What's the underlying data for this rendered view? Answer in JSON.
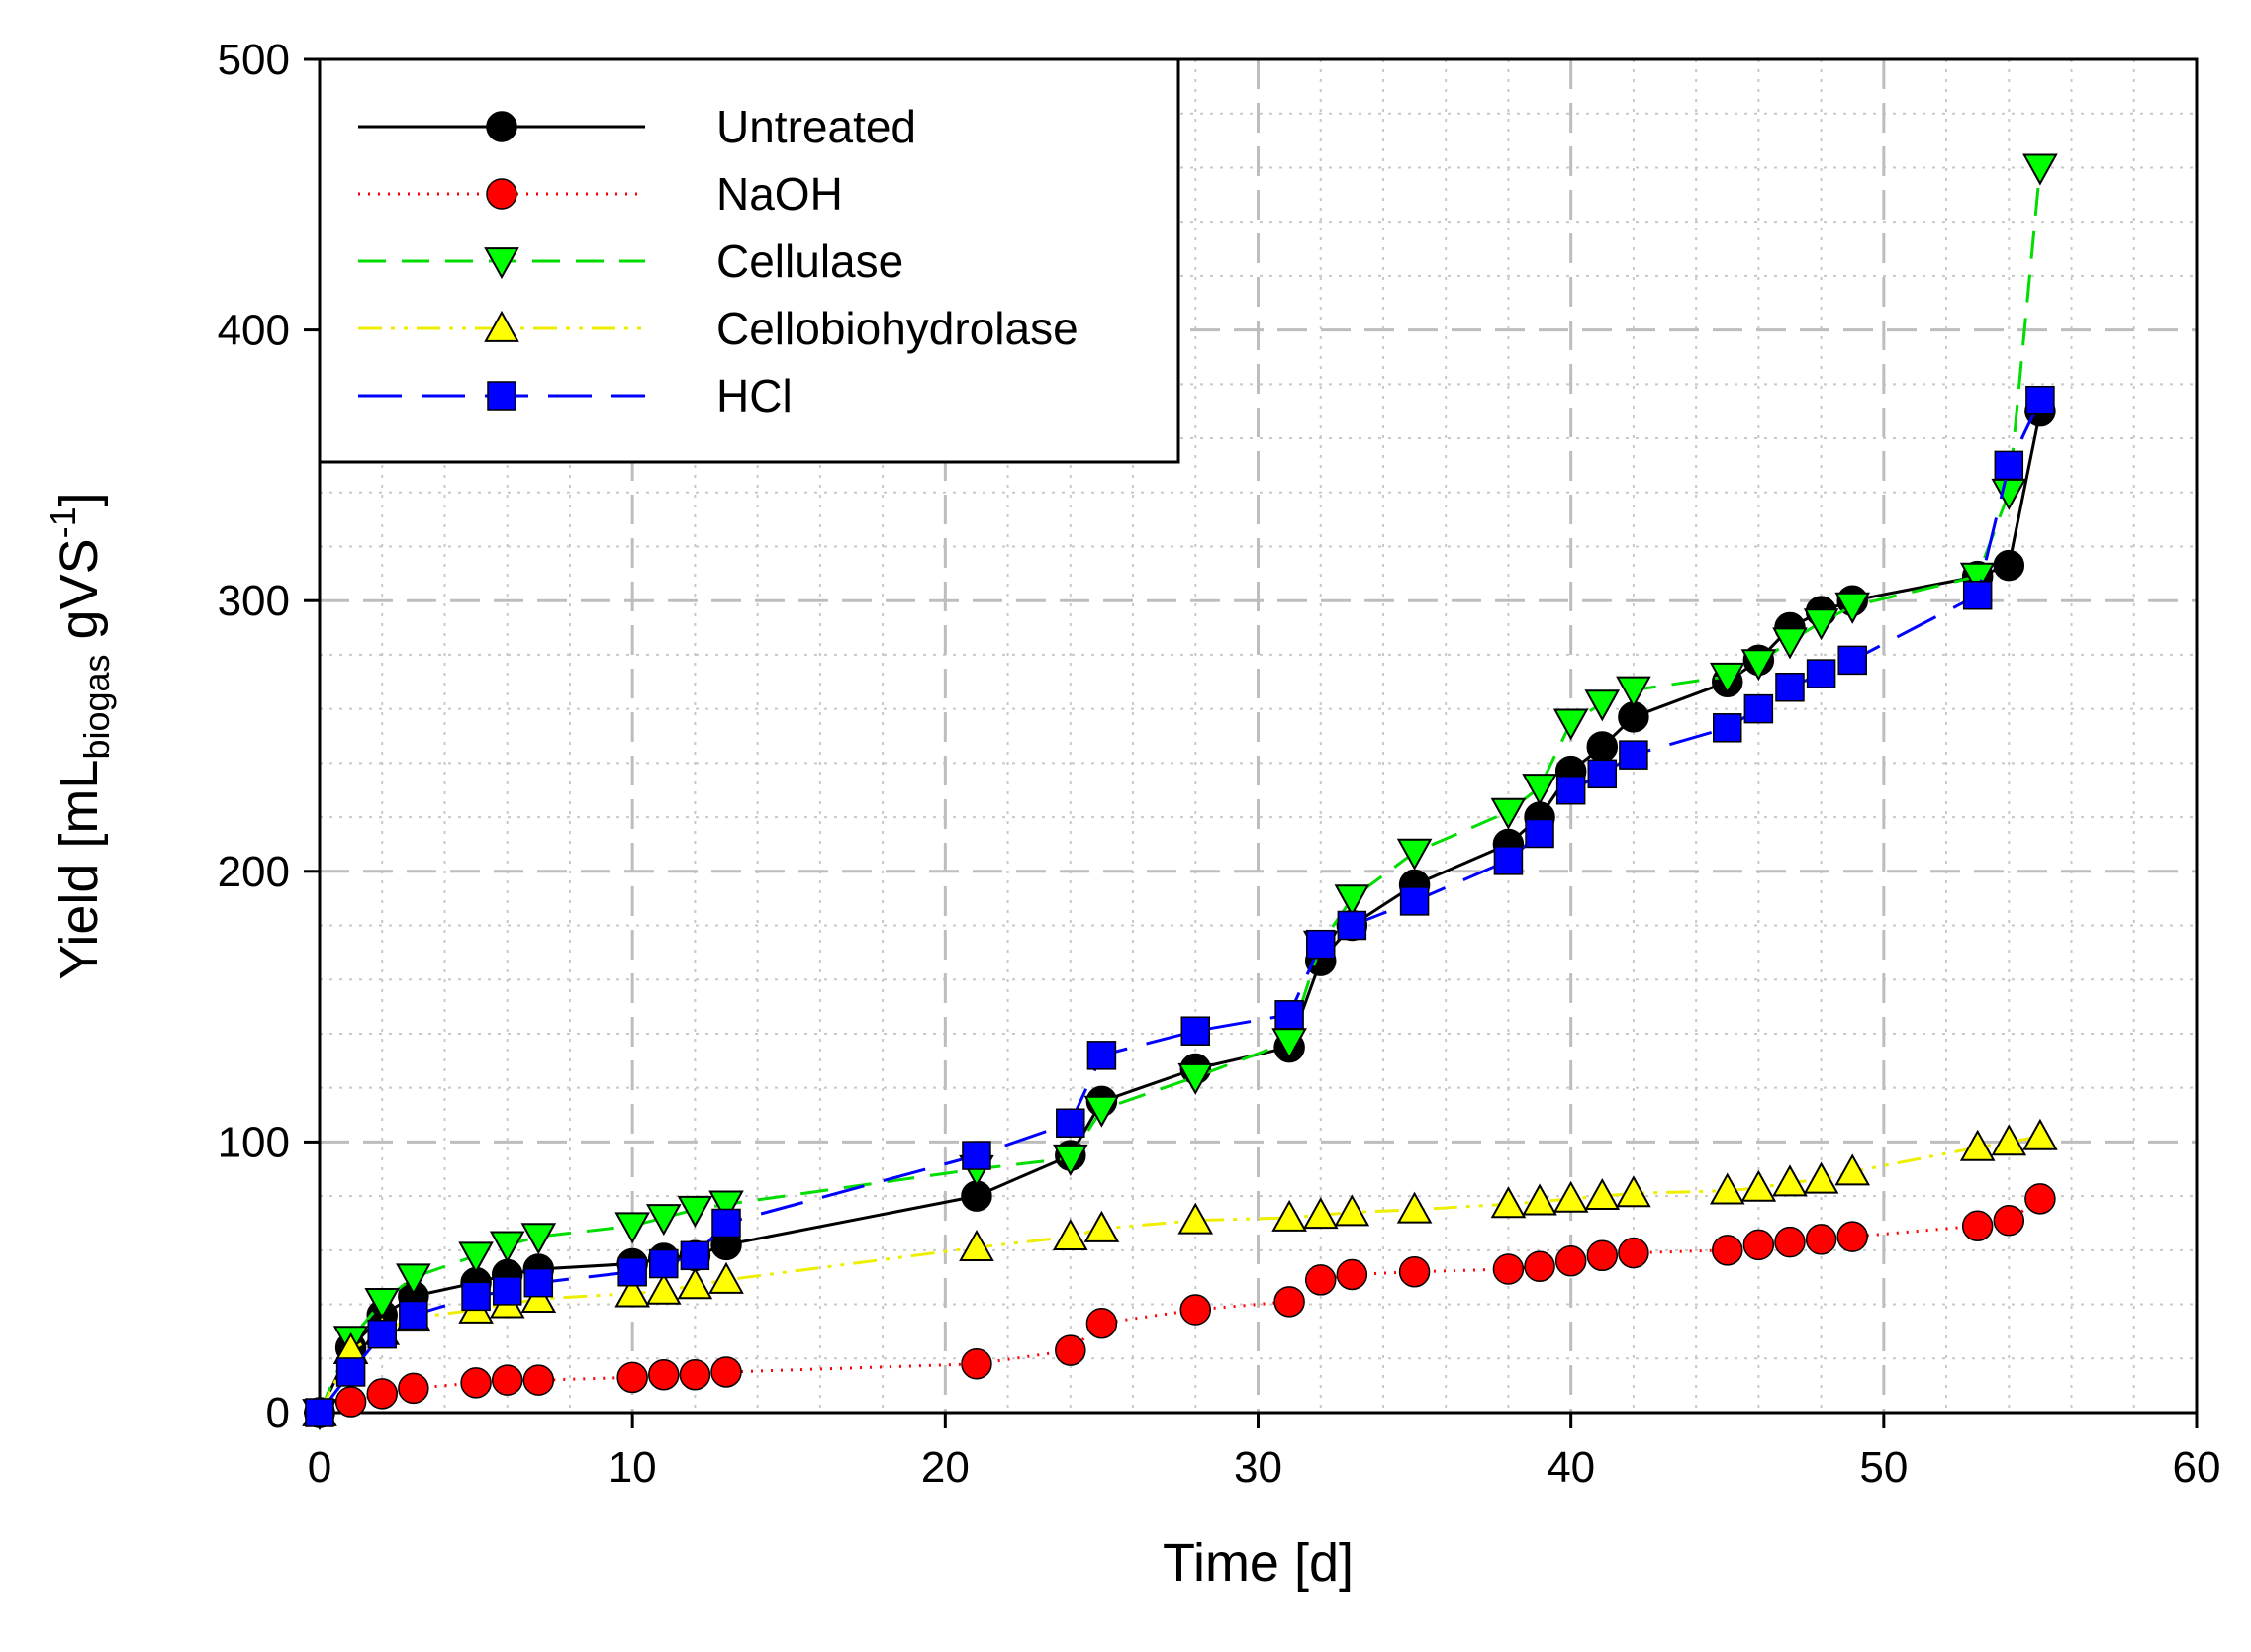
{
  "chart_data": {
    "type": "line",
    "title": "",
    "xlabel": "Time [d]",
    "ylabel": {
      "main": "Yield [mL",
      "subscript": "biogas",
      "unit": " gVS",
      "superscript": "-1",
      "close": "]"
    },
    "xlim": [
      0,
      60
    ],
    "ylim": [
      0,
      500
    ],
    "x_ticks": [
      0,
      10,
      20,
      30,
      40,
      50,
      60
    ],
    "y_ticks": [
      0,
      100,
      200,
      300,
      400,
      500
    ],
    "grid": true,
    "legend_position": "top-left",
    "series": [
      {
        "name": "Untreated",
        "color": "#000000",
        "marker": "circle",
        "marker_color": "#000000",
        "line": "solid",
        "x": [
          0,
          1,
          2,
          3,
          5,
          6,
          7,
          10,
          11,
          12,
          13,
          21,
          24,
          25,
          28,
          31,
          32,
          33,
          35,
          38,
          39,
          40,
          41,
          42,
          45,
          46,
          47,
          48,
          49,
          53,
          54,
          55
        ],
        "y": [
          0,
          24,
          36,
          43,
          48,
          51,
          53,
          55,
          57,
          58,
          62,
          80,
          95,
          115,
          127,
          135,
          167,
          180,
          195,
          210,
          220,
          237,
          246,
          257,
          270,
          278,
          290,
          296,
          300,
          309,
          313,
          370
        ]
      },
      {
        "name": "NaOH",
        "color": "#ff0000",
        "marker": "circle",
        "marker_color": "#ff0000",
        "line": "dotted",
        "x": [
          0,
          1,
          2,
          3,
          5,
          6,
          7,
          10,
          11,
          12,
          13,
          21,
          24,
          25,
          28,
          31,
          32,
          33,
          35,
          38,
          39,
          40,
          41,
          42,
          45,
          46,
          47,
          48,
          49,
          53,
          54,
          55
        ],
        "y": [
          0,
          4,
          7,
          9,
          11,
          12,
          12,
          13,
          14,
          14,
          15,
          18,
          23,
          33,
          38,
          41,
          49,
          51,
          52,
          53,
          54,
          56,
          58,
          59,
          60,
          62,
          63,
          64,
          65,
          69,
          71,
          79
        ]
      },
      {
        "name": "Cellulase",
        "color": "#00dd00",
        "marker": "triangle-down",
        "marker_color": "#00ff00",
        "line": "dashed",
        "x": [
          0,
          1,
          2,
          3,
          5,
          6,
          7,
          10,
          11,
          12,
          13,
          21,
          24,
          25,
          28,
          31,
          32,
          33,
          35,
          38,
          39,
          40,
          41,
          42,
          45,
          46,
          47,
          48,
          49,
          53,
          54,
          55
        ],
        "y": [
          0,
          27,
          41,
          50,
          58,
          62,
          65,
          69,
          72,
          75,
          77,
          90,
          94,
          112,
          124,
          137,
          173,
          190,
          207,
          222,
          231,
          255,
          262,
          267,
          272,
          277,
          285,
          292,
          298,
          309,
          340,
          460
        ]
      },
      {
        "name": "Cellobiohydrolase",
        "color": "#eeee00",
        "marker": "triangle-up",
        "marker_color": "#ffff00",
        "line": "dash-dot-dot",
        "x": [
          0,
          1,
          2,
          3,
          5,
          6,
          7,
          10,
          11,
          12,
          13,
          21,
          24,
          25,
          28,
          31,
          32,
          33,
          35,
          38,
          39,
          40,
          41,
          42,
          45,
          46,
          47,
          48,
          49,
          53,
          54,
          55
        ],
        "y": [
          0,
          23,
          30,
          35,
          38,
          40,
          42,
          44,
          45,
          47,
          49,
          61,
          65,
          68,
          71,
          72,
          73,
          74,
          75,
          77,
          78,
          79,
          80,
          81,
          82,
          83,
          85,
          86,
          89,
          98,
          100,
          102
        ]
      },
      {
        "name": "HCl",
        "color": "#0000ff",
        "marker": "square",
        "marker_color": "#0000ff",
        "line": "long-dash",
        "x": [
          0,
          1,
          2,
          3,
          5,
          6,
          7,
          10,
          11,
          12,
          13,
          21,
          24,
          25,
          28,
          31,
          32,
          33,
          35,
          38,
          39,
          40,
          41,
          42,
          45,
          46,
          47,
          48,
          49,
          53,
          54,
          55
        ],
        "y": [
          0,
          15,
          29,
          36,
          43,
          45,
          48,
          52,
          55,
          58,
          70,
          95,
          107,
          132,
          141,
          147,
          173,
          180,
          189,
          204,
          214,
          230,
          236,
          243,
          253,
          260,
          268,
          273,
          278,
          302,
          350,
          374
        ]
      }
    ]
  }
}
